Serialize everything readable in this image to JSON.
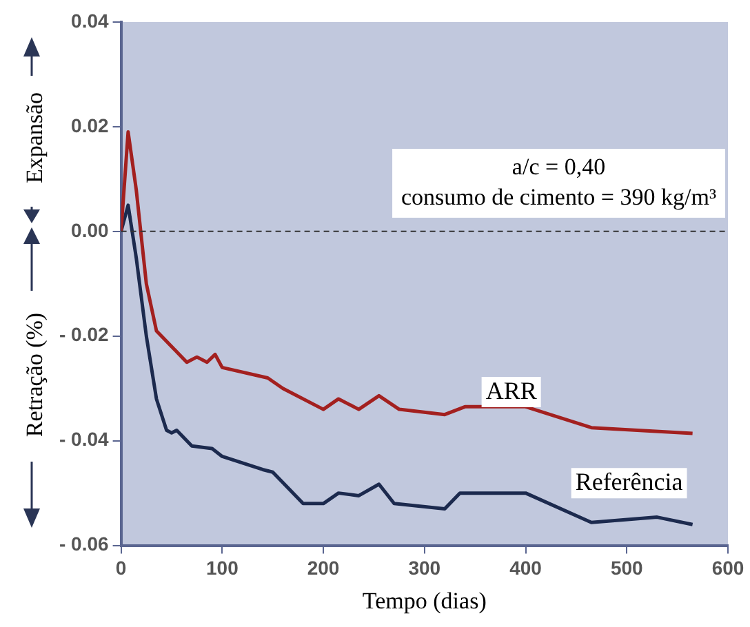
{
  "chart_data": {
    "type": "line",
    "xlabel": "Tempo (dias)",
    "ylabel": "Retração (%)",
    "annotations": [
      "Expansão",
      "a/c = 0,40",
      "consumo de cimento = 390 kg/m³"
    ],
    "xlim": [
      0,
      600
    ],
    "xticks": [
      0,
      100,
      200,
      300,
      400,
      500,
      600
    ],
    "ylim": [
      -0.06,
      0.04
    ],
    "yticks": [
      {
        "value": -0.06,
        "label": "- 0.06"
      },
      {
        "value": -0.04,
        "label": "- 0.04"
      },
      {
        "value": -0.02,
        "label": "- 0.02"
      },
      {
        "value": 0,
        "label": "0.00"
      },
      {
        "value": 0.02,
        "label": "0.02"
      },
      {
        "value": 0.04,
        "label": "0.04"
      }
    ],
    "grid": false,
    "legend": false,
    "marker": "none",
    "line_style": "solid",
    "ref_lines": [
      {
        "axis": "y",
        "value": 0,
        "line_style": "dashed",
        "color": "#333333"
      }
    ],
    "series": [
      {
        "name": "ARR",
        "color": "#a3201f",
        "x": [
          0,
          7,
          15,
          25,
          35,
          50,
          65,
          75,
          85,
          93,
          100,
          145,
          160,
          200,
          215,
          235,
          255,
          275,
          320,
          340,
          400,
          465,
          565
        ],
        "values": [
          0,
          0.019,
          0.008,
          -0.01,
          -0.019,
          -0.022,
          -0.025,
          -0.024,
          -0.025,
          -0.0235,
          -0.026,
          -0.028,
          -0.03,
          -0.034,
          -0.032,
          -0.034,
          -0.0314,
          -0.034,
          -0.035,
          -0.0335,
          -0.0335,
          -0.0375,
          -0.0386
        ]
      },
      {
        "name": "Referência",
        "color": "#1c2a4e",
        "x": [
          0,
          7,
          15,
          25,
          35,
          45,
          50,
          55,
          70,
          90,
          100,
          140,
          150,
          180,
          200,
          215,
          235,
          255,
          270,
          320,
          335,
          400,
          465,
          530,
          565
        ],
        "values": [
          0,
          0.005,
          -0.005,
          -0.02,
          -0.032,
          -0.038,
          -0.0385,
          -0.038,
          -0.041,
          -0.0415,
          -0.043,
          -0.0455,
          -0.046,
          -0.052,
          -0.052,
          -0.05,
          -0.0505,
          -0.0483,
          -0.052,
          -0.053,
          -0.05,
          -0.05,
          -0.0556,
          -0.0546,
          -0.056
        ]
      }
    ]
  }
}
